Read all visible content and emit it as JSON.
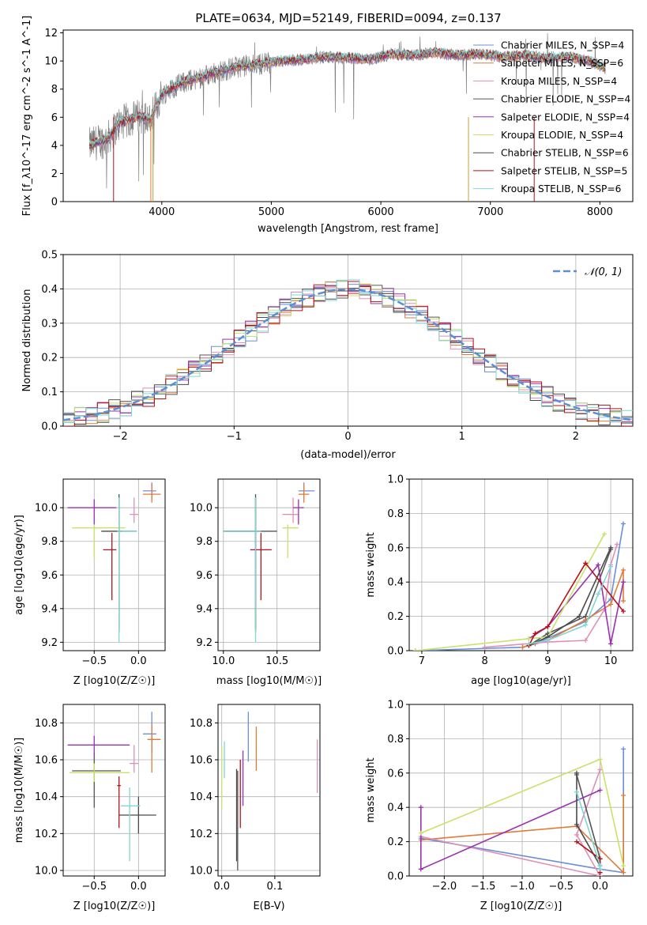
{
  "title": "PLATE=0634, MJD=52149, FIBERID=0094, z=0.137",
  "colors": {
    "series": [
      "#6a8fd8",
      "#e07b39",
      "#e08fb8",
      "#555555",
      "#9b30b0",
      "#c8e26a",
      "#4a4a4a",
      "#b5121b",
      "#7fd6d6"
    ],
    "grid": "#b0b0b0",
    "data_spectrum": "#808080",
    "gaussian": "#5a8fd8"
  },
  "chart_data": [
    {
      "id": "spectrum",
      "type": "line",
      "title": "PLATE=0634, MJD=52149, FIBERID=0094, z=0.137",
      "xlabel": "wavelength [Angstrom, rest frame]",
      "ylabel": "Flux [f_λ10^-17 erg cm^-2 s^-1 A^-1]",
      "xlim": [
        3100,
        8300
      ],
      "ylim": [
        0,
        12.2
      ],
      "xticks": [
        4000,
        5000,
        6000,
        7000,
        8000
      ],
      "yticks": [
        0,
        2,
        4,
        6,
        8,
        10,
        12
      ],
      "legend_position": "right",
      "legend": [
        "Chabrier MILES, N_SSP=4",
        "Salpeter MILES, N_SSP=6",
        "Kroupa MILES, N_SSP=4",
        "Chabrier ELODIE, N_SSP=4",
        "Salpeter ELODIE, N_SSP=4",
        "Kroupa ELODIE, N_SSP=4",
        "Chabrier STELIB, N_SSP=6",
        "Salpeter STELIB, N_SSP=5",
        "Kroupa STELIB, N_SSP=6"
      ],
      "legend_colors": [
        "#6a8fd8",
        "#e07b39",
        "#e08fb8",
        "#555555",
        "#9b30b0",
        "#c8e26a",
        "#4a4a4a",
        "#b5121b",
        "#7fd6d6"
      ],
      "continuum": {
        "x": [
          3340,
          3400,
          3500,
          3600,
          3700,
          3800,
          3900,
          3950,
          4000,
          4100,
          4200,
          4300,
          4500,
          4700,
          4900,
          5100,
          5300,
          5500,
          5700,
          5900,
          6100,
          6300,
          6500,
          6700,
          6900,
          7100,
          7300,
          7500,
          7700,
          7900,
          8050
        ],
        "y": [
          4.0,
          4.2,
          4.4,
          5.5,
          5.8,
          6.1,
          5.8,
          6.8,
          7.6,
          8.1,
          8.5,
          8.7,
          9.2,
          9.6,
          9.8,
          10.0,
          10.1,
          10.3,
          10.2,
          10.1,
          10.5,
          10.4,
          10.6,
          10.4,
          10.5,
          10.3,
          10.4,
          10.2,
          10.3,
          10.0,
          9.5
        ]
      }
    },
    {
      "id": "residuals",
      "type": "line",
      "xlabel": "(data-model)/error",
      "ylabel": "Normed distribution",
      "xlim": [
        -2.5,
        2.5
      ],
      "ylim": [
        0,
        0.5
      ],
      "xticks": [
        -2,
        -1,
        0,
        1,
        2
      ],
      "yticks": [
        0.0,
        0.1,
        0.2,
        0.3,
        0.4,
        0.5
      ],
      "legend": [
        "𝒩(0, 1)"
      ],
      "legend_position": "top-right",
      "gaussian": {
        "mu": 0,
        "sigma": 1
      }
    },
    {
      "id": "age_vs_Z",
      "type": "scatter",
      "xlabel": "Z [log10(Z/Z☉)]",
      "ylabel": "age  [log10(age/yr)]",
      "xlim": [
        -0.85,
        0.3
      ],
      "ylim": [
        9.15,
        10.17
      ],
      "xticks": [
        -0.5,
        0.0
      ],
      "yticks": [
        9.2,
        9.4,
        9.6,
        9.8,
        10.0
      ],
      "points": [
        {
          "x": 0.15,
          "y": 10.1,
          "xerr": [
            0.1,
            0.05
          ],
          "yerr": [
            0.05,
            0.05
          ]
        },
        {
          "x": 0.15,
          "y": 10.08,
          "xerr": [
            0.1,
            0.1
          ],
          "yerr": [
            0.05,
            0.06
          ]
        },
        {
          "x": -0.05,
          "y": 9.96,
          "xerr": [
            0.05,
            0.05
          ],
          "yerr": [
            0.05,
            0.1
          ]
        },
        {
          "x": -0.22,
          "y": 9.86,
          "xerr": [
            0.02,
            0.2
          ],
          "yerr": [
            0.6,
            0.2
          ]
        },
        {
          "x": -0.5,
          "y": 10.0,
          "xerr": [
            0.3,
            0.25
          ],
          "yerr": [
            0.1,
            0.05
          ]
        },
        {
          "x": -0.5,
          "y": 9.88,
          "xerr": [
            0.25,
            0.35
          ],
          "yerr": [
            0.18,
            0.02
          ]
        },
        {
          "x": -0.22,
          "y": 9.86,
          "xerr": [
            0.2,
            0.03
          ],
          "yerr": [
            0.58,
            0.22
          ]
        },
        {
          "x": -0.3,
          "y": 9.75,
          "xerr": [
            0.1,
            0.05
          ],
          "yerr": [
            0.3,
            0.1
          ]
        },
        {
          "x": -0.22,
          "y": 9.86,
          "xerr": [
            0.02,
            0.2
          ],
          "yerr": [
            0.66,
            0.2
          ]
        }
      ]
    },
    {
      "id": "age_vs_mass",
      "type": "scatter",
      "xlabel": "mass [log10(M/M☉)]",
      "ylabel": "",
      "xlim": [
        9.95,
        10.9
      ],
      "ylim": [
        9.15,
        10.17
      ],
      "xticks": [
        10.0,
        10.5
      ],
      "yticks": [
        9.2,
        9.4,
        9.6,
        9.8,
        10.0
      ],
      "points": [
        {
          "x": 10.75,
          "y": 10.1,
          "xerr": [
            0.05,
            0.1
          ],
          "yerr": [
            0.05,
            0.05
          ]
        },
        {
          "x": 10.75,
          "y": 10.08,
          "xerr": [
            0.05,
            0.05
          ],
          "yerr": [
            0.05,
            0.06
          ]
        },
        {
          "x": 10.65,
          "y": 9.96,
          "xerr": [
            0.1,
            0.05
          ],
          "yerr": [
            0.05,
            0.1
          ]
        },
        {
          "x": 10.3,
          "y": 9.86,
          "xerr": [
            0.3,
            0.2
          ],
          "yerr": [
            0.6,
            0.2
          ]
        },
        {
          "x": 10.7,
          "y": 10.0,
          "xerr": [
            0.05,
            0.05
          ],
          "yerr": [
            0.1,
            0.05
          ]
        },
        {
          "x": 10.6,
          "y": 9.88,
          "xerr": [
            0.05,
            0.1
          ],
          "yerr": [
            0.18,
            0.02
          ]
        },
        {
          "x": 10.3,
          "y": 9.86,
          "xerr": [
            0.3,
            0.05
          ],
          "yerr": [
            0.58,
            0.22
          ]
        },
        {
          "x": 10.35,
          "y": 9.75,
          "xerr": [
            0.1,
            0.1
          ],
          "yerr": [
            0.3,
            0.1
          ]
        },
        {
          "x": 10.3,
          "y": 9.86,
          "xerr": [
            0.3,
            0.05
          ],
          "yerr": [
            0.66,
            0.2
          ]
        }
      ]
    },
    {
      "id": "weight_vs_age",
      "type": "line",
      "xlabel": "age  [log10(age/yr)]",
      "ylabel": "mass weight",
      "xlim": [
        6.8,
        10.35
      ],
      "ylim": [
        0,
        1.0
      ],
      "xticks": [
        7,
        8,
        9,
        10
      ],
      "yticks": [
        0.0,
        0.2,
        0.4,
        0.6,
        0.8,
        1.0
      ],
      "series": [
        {
          "x": [
            6.9,
            8.6,
            8.8,
            9.6,
            10.0,
            10.2
          ],
          "y": [
            0.0,
            0.02,
            0.04,
            0.17,
            0.3,
            0.74
          ]
        },
        {
          "x": [
            8.6,
            9.0,
            9.6,
            10.0,
            10.2,
            10.2
          ],
          "y": [
            0.02,
            0.06,
            0.18,
            0.27,
            0.47,
            0.29
          ]
        },
        {
          "x": [
            8.0,
            9.0,
            9.6,
            9.9,
            10.0,
            10.1
          ],
          "y": [
            0.02,
            0.05,
            0.06,
            0.24,
            0.5,
            0.62
          ]
        },
        {
          "x": [
            8.7,
            9.0,
            9.6,
            10.0
          ],
          "y": [
            0.03,
            0.1,
            0.2,
            0.59
          ]
        },
        {
          "x": [
            8.7,
            9.0,
            9.8,
            10.0,
            10.2
          ],
          "y": [
            0.07,
            0.14,
            0.5,
            0.04,
            0.4
          ]
        },
        {
          "x": [
            6.9,
            8.7,
            9.0,
            9.9
          ],
          "y": [
            0.0,
            0.07,
            0.08,
            0.68
          ]
        },
        {
          "x": [
            8.7,
            9.0,
            9.5,
            10.0
          ],
          "y": [
            0.03,
            0.08,
            0.2,
            0.6
          ]
        },
        {
          "x": [
            8.7,
            8.8,
            9.0,
            9.6,
            10.2
          ],
          "y": [
            0.03,
            0.1,
            0.14,
            0.51,
            0.23
          ]
        },
        {
          "x": [
            8.7,
            9.0,
            9.6,
            9.8,
            10.0
          ],
          "y": [
            0.04,
            0.06,
            0.15,
            0.33,
            0.49
          ]
        }
      ]
    },
    {
      "id": "mass_vs_Z",
      "type": "scatter",
      "xlabel": "Z [log10(Z/Z☉)]",
      "ylabel": "mass [log10(M/M☉)]",
      "xlim": [
        -0.85,
        0.3
      ],
      "ylim": [
        9.97,
        10.9
      ],
      "xticks": [
        -0.5,
        0.0
      ],
      "yticks": [
        10.0,
        10.2,
        10.4,
        10.6,
        10.8
      ],
      "points": [
        {
          "x": 0.15,
          "y": 10.74,
          "xerr": [
            0.1,
            0.05
          ],
          "yerr": [
            0.1,
            0.12
          ]
        },
        {
          "x": 0.15,
          "y": 10.71,
          "xerr": [
            0.05,
            0.1
          ],
          "yerr": [
            0.18,
            0.08
          ]
        },
        {
          "x": -0.05,
          "y": 10.58,
          "xerr": [
            0.05,
            0.05
          ],
          "yerr": [
            0.05,
            0.1
          ]
        },
        {
          "x": -0.5,
          "y": 10.54,
          "xerr": [
            0.25,
            0.3
          ],
          "yerr": [
            0.2,
            0.1
          ]
        },
        {
          "x": -0.5,
          "y": 10.68,
          "xerr": [
            0.3,
            0.4
          ],
          "yerr": [
            0.05,
            0.05
          ]
        },
        {
          "x": -0.5,
          "y": 10.53,
          "xerr": [
            0.28,
            0.4
          ],
          "yerr": [
            0.05,
            0.05
          ]
        },
        {
          "x": 0.0,
          "y": 10.3,
          "xerr": [
            0.22,
            0.2
          ],
          "yerr": [
            0.1,
            0.1
          ]
        },
        {
          "x": -0.22,
          "y": 10.46,
          "xerr": [
            0.02,
            0.02
          ],
          "yerr": [
            0.23,
            0.05
          ]
        },
        {
          "x": -0.1,
          "y": 10.35,
          "xerr": [
            0.1,
            0.12
          ],
          "yerr": [
            0.3,
            0.1
          ]
        }
      ]
    },
    {
      "id": "mass_vs_EBV",
      "type": "scatter",
      "xlabel": "E(B-V)",
      "ylabel": "",
      "xlim": [
        -0.007,
        0.185
      ],
      "ylim": [
        9.97,
        10.9
      ],
      "xticks": [
        0.0,
        0.1
      ],
      "yticks": [
        10.0,
        10.2,
        10.4,
        10.6,
        10.8
      ],
      "points": [
        {
          "x": 0.05,
          "y": 10.74,
          "xerr": [
            0,
            0
          ],
          "yerr": [
            0.15,
            0.12
          ]
        },
        {
          "x": 0.065,
          "y": 10.66,
          "xerr": [
            0,
            0
          ],
          "yerr": [
            0.12,
            0.12
          ]
        },
        {
          "x": 0.18,
          "y": 10.57,
          "xerr": [
            0,
            0
          ],
          "yerr": [
            0.15,
            0.14
          ]
        },
        {
          "x": 0.03,
          "y": 10.3,
          "xerr": [
            0,
            0
          ],
          "yerr": [
            0.3,
            0.24
          ]
        },
        {
          "x": 0.04,
          "y": 10.45,
          "xerr": [
            0,
            0
          ],
          "yerr": [
            0.1,
            0.2
          ]
        },
        {
          "x": 0.0,
          "y": 10.5,
          "xerr": [
            0,
            0
          ],
          "yerr": [
            0.17,
            0.17
          ]
        },
        {
          "x": 0.028,
          "y": 10.25,
          "xerr": [
            0,
            0
          ],
          "yerr": [
            0.2,
            0.3
          ]
        },
        {
          "x": 0.035,
          "y": 10.35,
          "xerr": [
            0,
            0
          ],
          "yerr": [
            0.12,
            0.25
          ]
        },
        {
          "x": 0.005,
          "y": 10.6,
          "xerr": [
            0,
            0
          ],
          "yerr": [
            0.1,
            0.1
          ]
        }
      ]
    },
    {
      "id": "weight_vs_Z",
      "type": "line",
      "xlabel": "Z [log10(Z/Z☉)]",
      "ylabel": "mass weight",
      "xlim": [
        -2.45,
        0.42
      ],
      "ylim": [
        0,
        1.0
      ],
      "xticks": [
        -2.0,
        -1.5,
        -1.0,
        -0.5,
        0.0
      ],
      "yticks": [
        0.0,
        0.2,
        0.4,
        0.6,
        0.8,
        1.0
      ],
      "series": [
        {
          "x": [
            -2.3,
            0.0,
            0.3,
            0.3
          ],
          "y": [
            0.22,
            0.04,
            0.02,
            0.74
          ]
        },
        {
          "x": [
            -2.3,
            -0.3,
            0.3,
            0.3
          ],
          "y": [
            0.21,
            0.29,
            0.02,
            0.47
          ]
        },
        {
          "x": [
            -2.3,
            0.0,
            -0.3,
            0.0
          ],
          "y": [
            0.23,
            0.0,
            0.24,
            0.62
          ]
        },
        {
          "x": [
            -0.3,
            0.0,
            0.0
          ],
          "y": [
            0.59,
            0.1,
            0.02
          ]
        },
        {
          "x": [
            -2.3,
            -2.3,
            0.0
          ],
          "y": [
            0.4,
            0.04,
            0.5
          ]
        },
        {
          "x": [
            -2.3,
            0.0,
            0.3
          ],
          "y": [
            0.25,
            0.68,
            0.06
          ]
        },
        {
          "x": [
            -0.3,
            -0.3,
            0.0
          ],
          "y": [
            0.6,
            0.3,
            0.06
          ]
        },
        {
          "x": [
            -0.3,
            0.0,
            0.0
          ],
          "y": [
            0.2,
            0.1,
            0.02
          ]
        },
        {
          "x": [
            -0.3,
            0.0,
            0.0
          ],
          "y": [
            0.49,
            0.06,
            0.04
          ]
        }
      ]
    }
  ]
}
